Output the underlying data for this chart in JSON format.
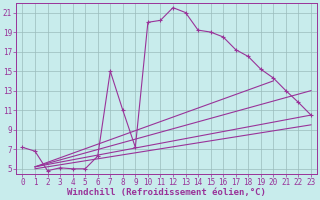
{
  "xlabel": "Windchill (Refroidissement éolien,°C)",
  "bg_color": "#c8ecec",
  "line_color": "#993399",
  "grid_color": "#9bbcbc",
  "xlim": [
    -0.5,
    23.5
  ],
  "ylim": [
    4.5,
    22
  ],
  "xticks": [
    0,
    1,
    2,
    3,
    4,
    5,
    6,
    7,
    8,
    9,
    10,
    11,
    12,
    13,
    14,
    15,
    16,
    17,
    18,
    19,
    20,
    21,
    22,
    23
  ],
  "yticks": [
    5,
    7,
    9,
    11,
    13,
    15,
    17,
    19,
    21
  ],
  "main_line": {
    "x": [
      0,
      1,
      2,
      3,
      4,
      5,
      6,
      7,
      8,
      9,
      10,
      11,
      12,
      13,
      14,
      15,
      16,
      17,
      18,
      19,
      20,
      21,
      22,
      23
    ],
    "y": [
      7.2,
      6.8,
      4.8,
      5.1,
      5.0,
      5.0,
      6.3,
      15.0,
      11.0,
      7.2,
      20.0,
      20.2,
      21.5,
      21.0,
      19.2,
      19.0,
      18.5,
      17.2,
      16.5,
      15.2,
      14.3,
      13.0,
      11.8,
      10.5
    ]
  },
  "straight_lines": [
    {
      "x": [
        1,
        20
      ],
      "y": [
        5.2,
        14.0
      ]
    },
    {
      "x": [
        1,
        23
      ],
      "y": [
        5.2,
        13.0
      ]
    },
    {
      "x": [
        1,
        23
      ],
      "y": [
        5.2,
        10.5
      ]
    },
    {
      "x": [
        1,
        23
      ],
      "y": [
        5.0,
        9.5
      ]
    }
  ],
  "xlabel_fontsize": 6.5,
  "tick_fontsize": 5.5,
  "marker": "+"
}
